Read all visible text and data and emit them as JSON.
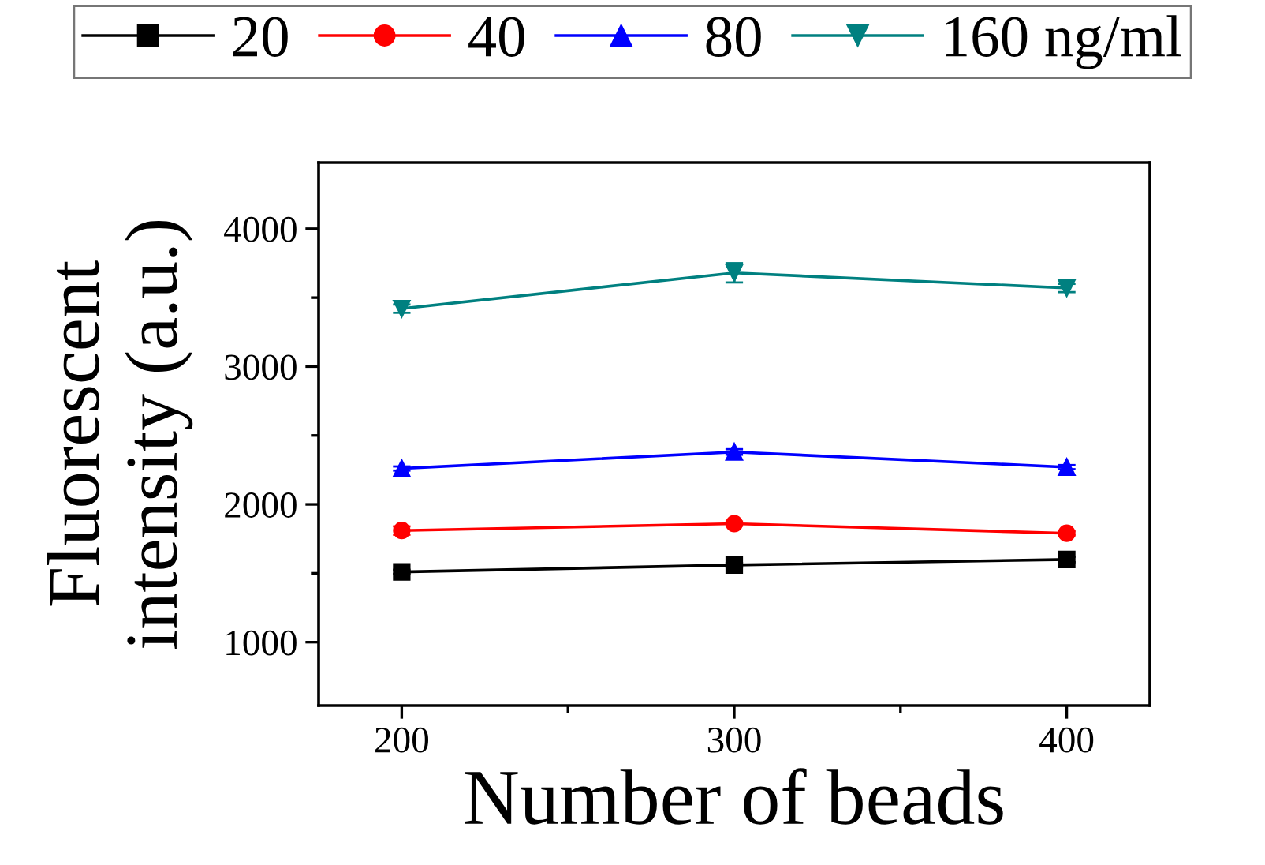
{
  "chart_data": {
    "type": "line",
    "xlabel": "Number of beads",
    "ylabel": "Fluorescent\nintensity (a.u.)",
    "x": [
      200,
      300,
      400
    ],
    "series": [
      {
        "name": "20",
        "color": "#000000",
        "marker": "square",
        "values": [
          1510,
          1560,
          1600
        ],
        "errors": [
          15,
          15,
          20
        ]
      },
      {
        "name": "40",
        "color": "#ff0000",
        "marker": "circle",
        "values": [
          1810,
          1860,
          1790
        ],
        "errors": [
          30,
          15,
          15
        ]
      },
      {
        "name": "80",
        "color": "#0000ff",
        "marker": "triangle",
        "values": [
          2260,
          2380,
          2270
        ],
        "errors": [
          15,
          20,
          15
        ]
      },
      {
        "name": "160 ng/ml",
        "color": "#008080",
        "marker": "triangle_down",
        "values": [
          3420,
          3680,
          3570
        ],
        "errors": [
          30,
          70,
          30
        ]
      }
    ],
    "xlim": [
      175,
      425
    ],
    "xticks": [
      200,
      300,
      400
    ],
    "ylim": [
      540,
      4480
    ],
    "yticks": [
      1000,
      2000,
      3000,
      4000
    ],
    "grid": false,
    "legend": "top"
  }
}
